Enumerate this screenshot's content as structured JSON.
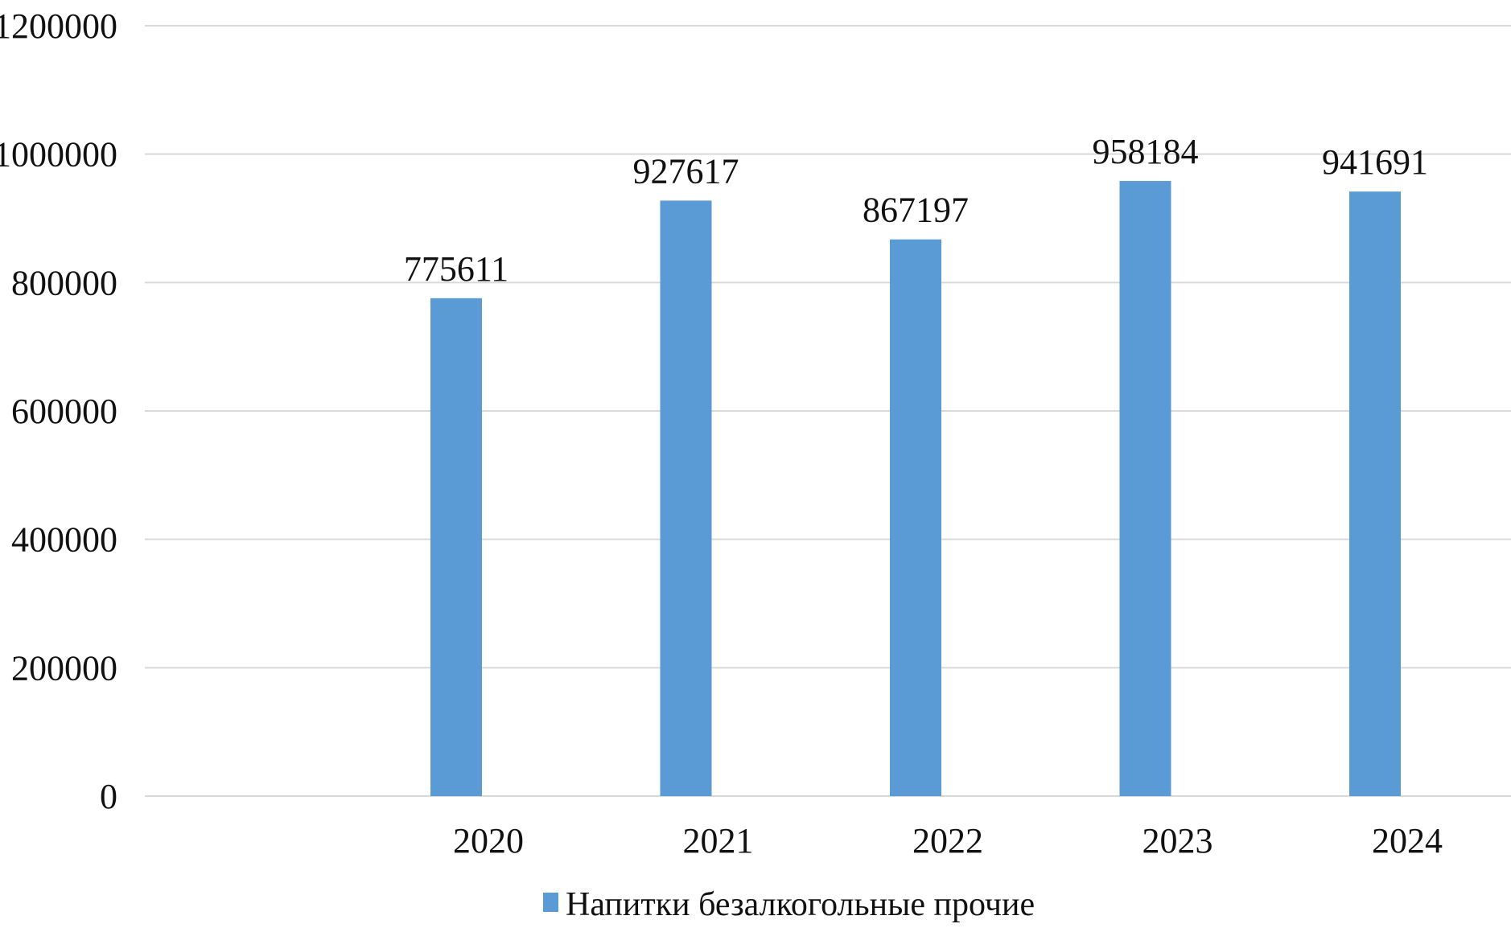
{
  "chart_data": {
    "type": "bar",
    "categories": [
      "2020",
      "2021",
      "2022",
      "2023",
      "2024"
    ],
    "series": [
      {
        "name": "Напитки безалкогольные прочие",
        "values": [
          775611,
          927617,
          867197,
          958184,
          941691
        ],
        "color": "#5b9bd5"
      }
    ],
    "data_labels": [
      "775611",
      "927617",
      "867197",
      "958184",
      "941691"
    ],
    "y_ticks": [
      "0",
      "200000",
      "400000",
      "600000",
      "800000",
      "1000000",
      "1200000"
    ],
    "ylim": [
      0,
      1200000
    ],
    "grid": true,
    "gridline_color": "#d9d9d9",
    "legend_position": "bottom"
  }
}
